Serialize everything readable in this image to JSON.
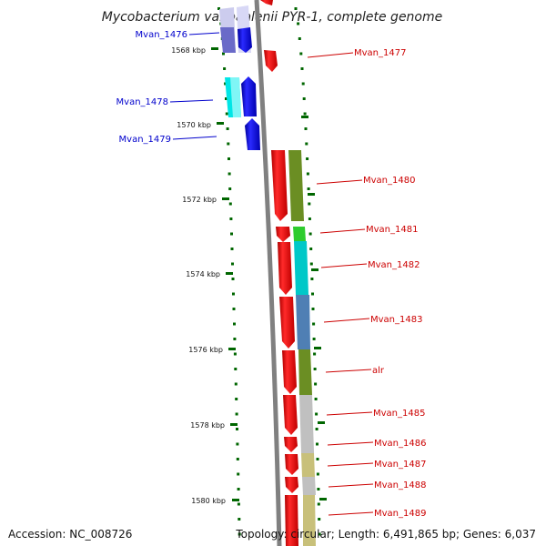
{
  "title": "Mycobacterium vanbaalenii PYR-1, complete genome",
  "accession_text": "Accession: NC_008726",
  "summary_text": "Topology: circular; Length: 6,491,865 bp; Genes: 6,037",
  "colors": {
    "forward_label": "#0000cc",
    "reverse_label": "#cc0000",
    "backbone": "#808080",
    "ticks": "#006600"
  },
  "kbp_ticks": [
    "1568 kbp",
    "1570 kbp",
    "1572 kbp",
    "1574 kbp",
    "1576 kbp",
    "1578 kbp",
    "1580 kbp"
  ],
  "forward_labels": [
    "Mvan_1476",
    "Mvan_1478",
    "Mvan_1479"
  ],
  "reverse_labels": [
    "Mvan_1477",
    "Mvan_1480",
    "Mvan_1481",
    "Mvan_1482",
    "Mvan_1483",
    "alr",
    "Mvan_1485",
    "Mvan_1486",
    "Mvan_1487",
    "Mvan_1488",
    "Mvan_1489"
  ]
}
